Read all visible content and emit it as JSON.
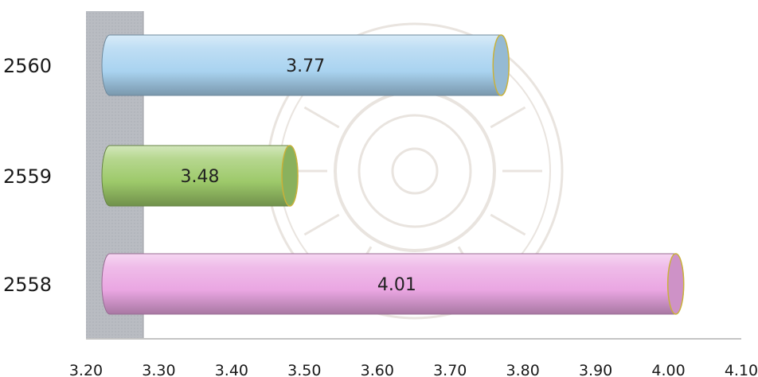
{
  "chart_data": {
    "type": "bar",
    "orientation": "horizontal",
    "style": "3d-cylinder",
    "categories": [
      "2560",
      "2559",
      "2558"
    ],
    "values": [
      3.77,
      3.48,
      4.01
    ],
    "data_labels": [
      "3.77",
      "3.48",
      "4.01"
    ],
    "colors": [
      "#a9d3f0",
      "#9dc96a",
      "#eaa6e2"
    ],
    "xlim": [
      3.2,
      4.1
    ],
    "ticks": [
      3.2,
      3.3,
      3.4,
      3.5,
      3.6,
      3.7,
      3.8,
      3.9,
      4.0,
      4.1
    ],
    "tick_labels": [
      "3.20",
      "3.30",
      "3.40",
      "3.50",
      "3.60",
      "3.70",
      "3.80",
      "3.90",
      "4.00",
      "4.10"
    ],
    "title": "",
    "xlabel": "",
    "ylabel": "",
    "grid": false,
    "legend": "none"
  }
}
